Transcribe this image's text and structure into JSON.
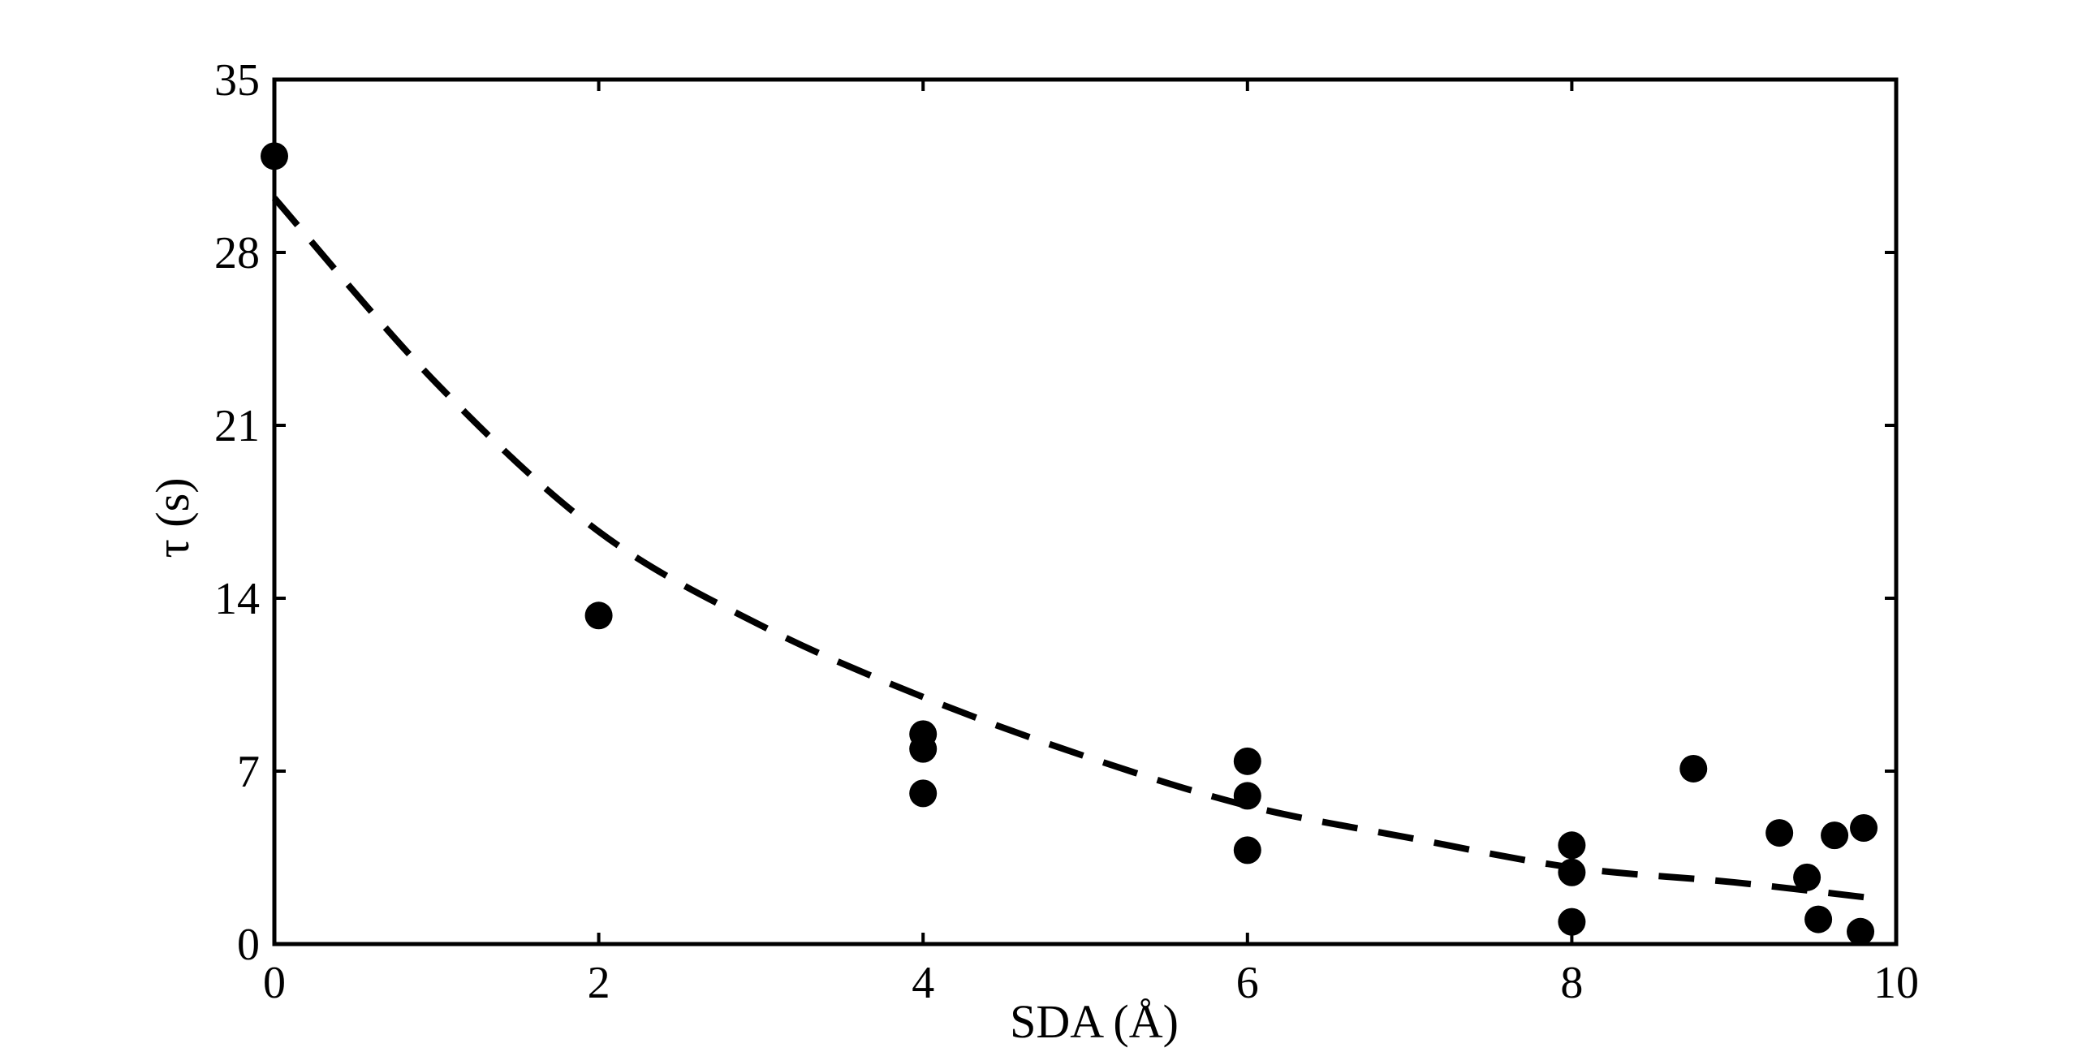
{
  "chart_data": {
    "type": "scatter",
    "title": "",
    "xlabel": "SDA (Å)",
    "ylabel": "τ (s)",
    "xlim": [
      0,
      10
    ],
    "ylim": [
      0,
      35
    ],
    "xticks": [
      0,
      2,
      4,
      6,
      8,
      10
    ],
    "yticks": [
      0,
      7,
      14,
      21,
      28,
      35
    ],
    "grid": false,
    "legend": "none",
    "colors": {
      "points": "#000000",
      "fit": "#000000",
      "axes": "#000000"
    },
    "series": [
      {
        "style": "markers",
        "points": [
          {
            "x": 0.0,
            "y": 31.9
          },
          {
            "x": 2.0,
            "y": 13.3
          },
          {
            "x": 4.0,
            "y": 8.5
          },
          {
            "x": 4.0,
            "y": 7.9
          },
          {
            "x": 4.0,
            "y": 6.1
          },
          {
            "x": 6.0,
            "y": 7.4
          },
          {
            "x": 6.0,
            "y": 6.0
          },
          {
            "x": 6.0,
            "y": 3.8
          },
          {
            "x": 8.0,
            "y": 4.0
          },
          {
            "x": 8.0,
            "y": 2.9
          },
          {
            "x": 8.0,
            "y": 0.9
          },
          {
            "x": 8.75,
            "y": 7.1
          },
          {
            "x": 9.28,
            "y": 4.5
          },
          {
            "x": 9.45,
            "y": 2.7
          },
          {
            "x": 9.52,
            "y": 1.0
          },
          {
            "x": 9.62,
            "y": 4.4
          },
          {
            "x": 9.78,
            "y": 0.5
          },
          {
            "x": 9.8,
            "y": 4.7
          }
        ]
      },
      {
        "style": "dashed-fit",
        "points": [
          {
            "x": 0.0,
            "y": 30.2
          },
          {
            "x": 1.0,
            "y": 22.7
          },
          {
            "x": 2.0,
            "y": 16.7
          },
          {
            "x": 3.0,
            "y": 12.9
          },
          {
            "x": 4.0,
            "y": 10.0
          },
          {
            "x": 5.0,
            "y": 7.6
          },
          {
            "x": 6.0,
            "y": 5.6
          },
          {
            "x": 7.0,
            "y": 4.3
          },
          {
            "x": 8.0,
            "y": 3.1
          },
          {
            "x": 9.0,
            "y": 2.5
          },
          {
            "x": 9.8,
            "y": 1.9
          }
        ]
      }
    ]
  }
}
